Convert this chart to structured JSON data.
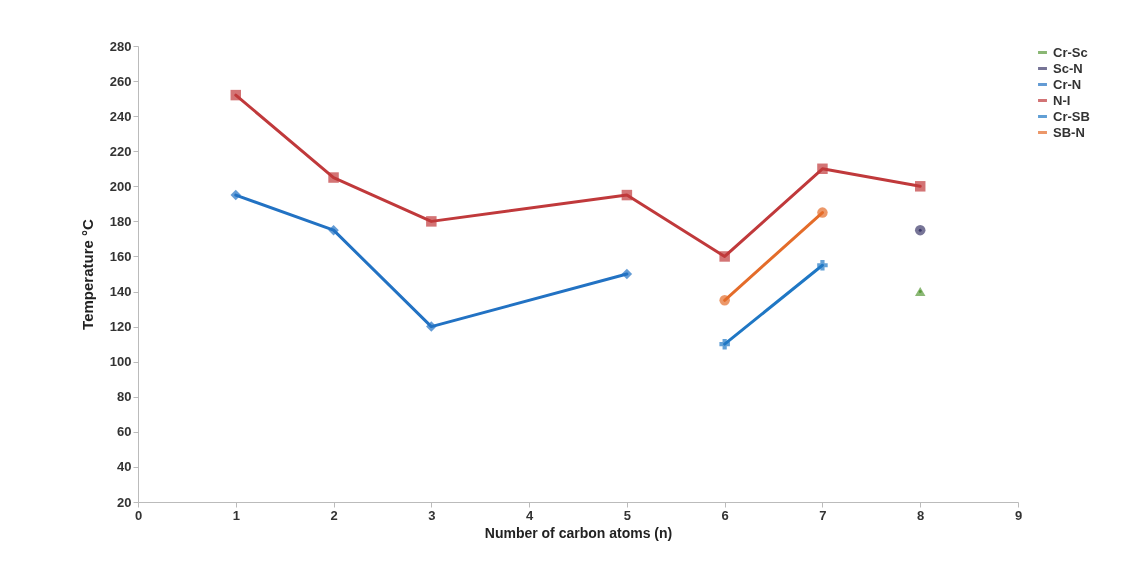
{
  "chart_data": {
    "type": "line",
    "xlabel": "Number of carbon atoms (n)",
    "ylabel": "Temperature °C",
    "xlim": [
      0,
      9
    ],
    "xticks": [
      0,
      1,
      2,
      3,
      4,
      5,
      6,
      7,
      8,
      9
    ],
    "ylim": [
      20,
      280
    ],
    "yticks": [
      20,
      40,
      60,
      80,
      100,
      120,
      140,
      160,
      180,
      200,
      220,
      240,
      260,
      280
    ],
    "grid": false,
    "legend": "right",
    "series": [
      {
        "name": "Cr-Sc",
        "color": "#5a9a3a",
        "marker": "triangle",
        "x": [
          8
        ],
        "values": [
          140
        ]
      },
      {
        "name": "Sc-N",
        "color": "#3d3a6b",
        "marker": "circle",
        "x": [
          8
        ],
        "values": [
          175
        ]
      },
      {
        "name": "Cr-N",
        "color": "#2272c3",
        "marker": "diamond",
        "x": [
          1,
          2,
          3,
          5
        ],
        "values": [
          195,
          175,
          120,
          150
        ]
      },
      {
        "name": "N-I",
        "color": "#c0393b",
        "marker": "square",
        "x": [
          1,
          2,
          3,
          5,
          6,
          7,
          8
        ],
        "values": [
          252,
          205,
          180,
          195,
          160,
          210,
          200
        ]
      },
      {
        "name": "Cr-SB",
        "color": "#1f77c4",
        "marker": "cross",
        "x": [
          6,
          7
        ],
        "values": [
          110,
          155
        ]
      },
      {
        "name": "SB-N",
        "color": "#e46c2a",
        "marker": "circle",
        "x": [
          6,
          7
        ],
        "values": [
          135,
          185
        ]
      }
    ]
  }
}
